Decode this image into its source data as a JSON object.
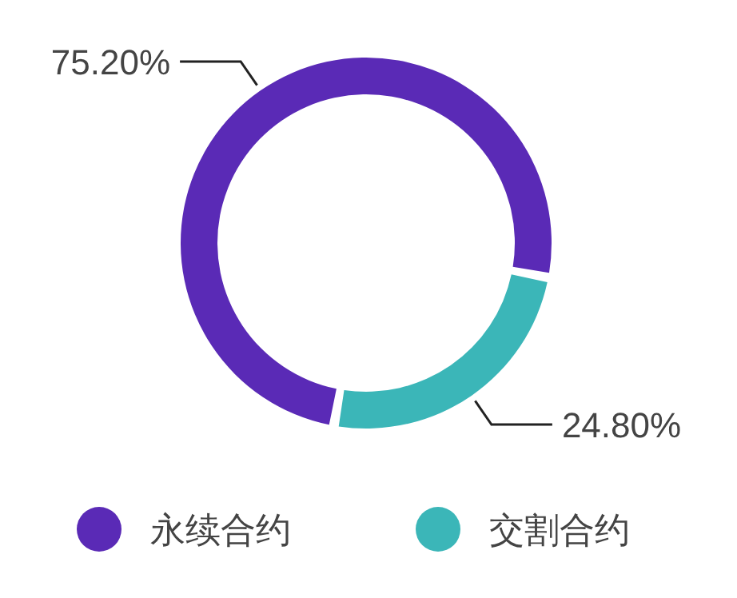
{
  "chart_data": {
    "type": "donut",
    "categories": [
      "永续合约",
      "交割合约"
    ],
    "values": [
      75.2,
      24.8
    ],
    "colors": [
      "#5a2ab6",
      "#3bb6b8"
    ],
    "value_labels": [
      "75.20%",
      "24.80%"
    ],
    "legend": "bottom"
  }
}
